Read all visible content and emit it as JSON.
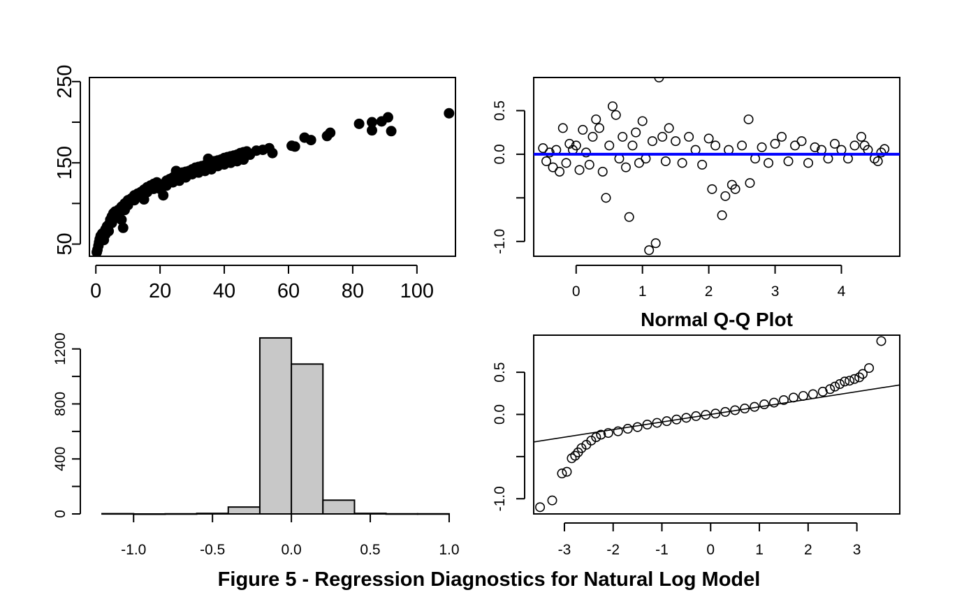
{
  "caption": "Figure 5 - Regression Diagnostics for Natural Log Model",
  "colors": {
    "points": "#000000",
    "hist_fill": "#c8c8c8",
    "hline": "#0000ff",
    "axis": "#000000"
  },
  "chart_data": [
    {
      "type": "scatter",
      "title": "",
      "xlabel": "",
      "ylabel": "",
      "xlim": [
        -2,
        112
      ],
      "ylim": [
        35,
        255
      ],
      "xticks": [
        0,
        20,
        40,
        60,
        80,
        100
      ],
      "yticks": [
        50,
        100,
        150,
        200,
        250
      ],
      "ytick_labels": [
        "50",
        "",
        "150",
        "",
        "250"
      ],
      "marker": "filled-circle",
      "points": [
        [
          0.3,
          40
        ],
        [
          0.5,
          43
        ],
        [
          0.8,
          48
        ],
        [
          1,
          52
        ],
        [
          1.2,
          56
        ],
        [
          1.5,
          60
        ],
        [
          2,
          63
        ],
        [
          2.5,
          55
        ],
        [
          3,
          68
        ],
        [
          3.5,
          72
        ],
        [
          4,
          74
        ],
        [
          4.5,
          80
        ],
        [
          5,
          84
        ],
        [
          5.5,
          88
        ],
        [
          6,
          90
        ],
        [
          7,
          92
        ],
        [
          8,
          96
        ],
        [
          8.5,
          70
        ],
        [
          9,
          100
        ],
        [
          10,
          104
        ],
        [
          11,
          106
        ],
        [
          12,
          110
        ],
        [
          13,
          112
        ],
        [
          14,
          114
        ],
        [
          15,
          117
        ],
        [
          16,
          120
        ],
        [
          17,
          122
        ],
        [
          18,
          124
        ],
        [
          19,
          126
        ],
        [
          20,
          122
        ],
        [
          21,
          110
        ],
        [
          22,
          128
        ],
        [
          23,
          130
        ],
        [
          24,
          132
        ],
        [
          25,
          134
        ],
        [
          26,
          136
        ],
        [
          27,
          138
        ],
        [
          28,
          139
        ],
        [
          29,
          140
        ],
        [
          30,
          142
        ],
        [
          31,
          144
        ],
        [
          32,
          145
        ],
        [
          33,
          146
        ],
        [
          34,
          147
        ],
        [
          35,
          149
        ],
        [
          36,
          150
        ],
        [
          37,
          152
        ],
        [
          38,
          153
        ],
        [
          39,
          154
        ],
        [
          40,
          156
        ],
        [
          41,
          157
        ],
        [
          42,
          158
        ],
        [
          43,
          159
        ],
        [
          44,
          160
        ],
        [
          45,
          162
        ],
        [
          46,
          163
        ],
        [
          47,
          164
        ],
        [
          48,
          160
        ],
        [
          50,
          165
        ],
        [
          52,
          166
        ],
        [
          54,
          168
        ],
        [
          55,
          162
        ],
        [
          61,
          171
        ],
        [
          62,
          170
        ],
        [
          65,
          181
        ],
        [
          67,
          178
        ],
        [
          72,
          183
        ],
        [
          73,
          187
        ],
        [
          82,
          198
        ],
        [
          86,
          200
        ],
        [
          86,
          190
        ],
        [
          89,
          201
        ],
        [
          91,
          206
        ],
        [
          92,
          189
        ],
        [
          110,
          211
        ],
        [
          3,
          62
        ],
        [
          5,
          76
        ],
        [
          6,
          82
        ],
        [
          7,
          86
        ],
        [
          9,
          92
        ],
        [
          10,
          98
        ],
        [
          12,
          104
        ],
        [
          14,
          108
        ],
        [
          16,
          114
        ],
        [
          18,
          118
        ],
        [
          20,
          118
        ],
        [
          22,
          122
        ],
        [
          24,
          126
        ],
        [
          26,
          128
        ],
        [
          28,
          132
        ],
        [
          30,
          136
        ],
        [
          32,
          138
        ],
        [
          34,
          140
        ],
        [
          36,
          142
        ],
        [
          38,
          146
        ],
        [
          40,
          148
        ],
        [
          42,
          150
        ],
        [
          44,
          152
        ],
        [
          46,
          154
        ],
        [
          25,
          140
        ],
        [
          35,
          155
        ],
        [
          15,
          105
        ],
        [
          8,
          80
        ],
        [
          4,
          66
        ],
        [
          2,
          58
        ]
      ]
    },
    {
      "type": "scatter",
      "title": "",
      "xlabel": "",
      "ylabel": "",
      "xlim": [
        -0.64,
        4.88
      ],
      "ylim": [
        -1.17,
        0.88
      ],
      "xticks": [
        0,
        1,
        2,
        3,
        4
      ],
      "yticks": [
        -1.0,
        -0.5,
        0.0,
        0.5
      ],
      "ytick_labels": [
        "-1.0",
        "",
        "0.0",
        "0.5"
      ],
      "hline": 0,
      "marker": "open-circle",
      "points": [
        [
          -0.5,
          0.07
        ],
        [
          -0.45,
          -0.08
        ],
        [
          -0.4,
          0.02
        ],
        [
          -0.35,
          -0.15
        ],
        [
          -0.3,
          0.05
        ],
        [
          -0.25,
          -0.2
        ],
        [
          -0.2,
          0.3
        ],
        [
          -0.15,
          -0.1
        ],
        [
          -0.1,
          0.12
        ],
        [
          -0.05,
          0.05
        ],
        [
          0,
          0.1
        ],
        [
          0.05,
          -0.18
        ],
        [
          0.1,
          0.28
        ],
        [
          0.15,
          0.02
        ],
        [
          0.2,
          -0.12
        ],
        [
          0.25,
          0.2
        ],
        [
          0.3,
          0.4
        ],
        [
          0.35,
          0.3
        ],
        [
          0.4,
          -0.2
        ],
        [
          0.45,
          -0.5
        ],
        [
          0.5,
          0.1
        ],
        [
          0.55,
          0.55
        ],
        [
          0.6,
          0.45
        ],
        [
          0.65,
          -0.05
        ],
        [
          0.7,
          0.2
        ],
        [
          0.75,
          -0.15
        ],
        [
          0.8,
          -0.72
        ],
        [
          0.85,
          0.1
        ],
        [
          0.9,
          0.25
        ],
        [
          0.95,
          -0.1
        ],
        [
          1.0,
          0.38
        ],
        [
          1.05,
          -0.05
        ],
        [
          1.1,
          -1.1
        ],
        [
          1.15,
          0.15
        ],
        [
          1.2,
          -1.02
        ],
        [
          1.25,
          0.88
        ],
        [
          1.3,
          0.2
        ],
        [
          1.35,
          -0.08
        ],
        [
          1.4,
          0.3
        ],
        [
          1.5,
          0.15
        ],
        [
          1.6,
          -0.1
        ],
        [
          1.7,
          0.2
        ],
        [
          1.8,
          0.05
        ],
        [
          1.9,
          -0.12
        ],
        [
          2.0,
          0.18
        ],
        [
          2.05,
          -0.4
        ],
        [
          2.1,
          0.1
        ],
        [
          2.2,
          -0.7
        ],
        [
          2.25,
          -0.48
        ],
        [
          2.3,
          0.05
        ],
        [
          2.35,
          -0.35
        ],
        [
          2.4,
          -0.4
        ],
        [
          2.5,
          0.1
        ],
        [
          2.6,
          0.4
        ],
        [
          2.62,
          -0.33
        ],
        [
          2.7,
          -0.05
        ],
        [
          2.8,
          0.08
        ],
        [
          2.9,
          -0.1
        ],
        [
          3.0,
          0.12
        ],
        [
          3.1,
          0.2
        ],
        [
          3.2,
          -0.08
        ],
        [
          3.3,
          0.1
        ],
        [
          3.4,
          0.15
        ],
        [
          3.5,
          -0.1
        ],
        [
          3.6,
          0.08
        ],
        [
          3.7,
          0.05
        ],
        [
          3.8,
          -0.05
        ],
        [
          3.9,
          0.12
        ],
        [
          4.0,
          0.05
        ],
        [
          4.1,
          -0.05
        ],
        [
          4.2,
          0.1
        ],
        [
          4.3,
          0.2
        ],
        [
          4.35,
          0.1
        ],
        [
          4.4,
          0.05
        ],
        [
          4.5,
          -0.05
        ],
        [
          4.55,
          -0.08
        ],
        [
          4.6,
          0.02
        ],
        [
          4.65,
          0.06
        ]
      ]
    },
    {
      "type": "bar",
      "title": "",
      "xlabel": "",
      "ylabel": "",
      "xlim": [
        -1.28,
        1.04
      ],
      "ylim": [
        0,
        1300
      ],
      "xticks": [
        -1.0,
        -0.5,
        0.0,
        0.5,
        1.0
      ],
      "xtick_labels": [
        "-1.0",
        "-0.5",
        "0.0",
        "0.5",
        "1.0"
      ],
      "yticks": [
        0,
        200,
        400,
        600,
        800,
        1000,
        1200
      ],
      "ytick_labels": [
        "0",
        "",
        "400",
        "",
        "800",
        "",
        "1200"
      ],
      "bins": [
        {
          "from": -1.2,
          "to": -1.0,
          "count": 2
        },
        {
          "from": -1.0,
          "to": -0.8,
          "count": 0
        },
        {
          "from": -0.8,
          "to": -0.6,
          "count": 1
        },
        {
          "from": -0.6,
          "to": -0.4,
          "count": 4
        },
        {
          "from": -0.4,
          "to": -0.2,
          "count": 50
        },
        {
          "from": -0.2,
          "to": 0.0,
          "count": 1280
        },
        {
          "from": 0.0,
          "to": 0.2,
          "count": 1090
        },
        {
          "from": 0.2,
          "to": 0.4,
          "count": 100
        },
        {
          "from": 0.4,
          "to": 0.6,
          "count": 4
        },
        {
          "from": 0.6,
          "to": 0.8,
          "count": 1
        },
        {
          "from": 0.8,
          "to": 1.0,
          "count": 1
        }
      ]
    },
    {
      "type": "scatter",
      "title": "Normal Q-Q Plot",
      "xlabel": "",
      "ylabel": "",
      "xlim": [
        -3.63,
        3.88
      ],
      "ylim": [
        -1.18,
        0.94
      ],
      "xticks": [
        -3,
        -2,
        -1,
        0,
        1,
        2,
        3
      ],
      "yticks": [
        -1.0,
        -0.5,
        0.0,
        0.5
      ],
      "ytick_labels": [
        "-1.0",
        "",
        "0.0",
        "0.5"
      ],
      "marker": "open-circle",
      "reference_line": {
        "intercept": 0.0,
        "slope": 0.09
      },
      "points": [
        [
          -3.5,
          -1.1
        ],
        [
          -3.25,
          -1.02
        ],
        [
          -3.05,
          -0.7
        ],
        [
          -2.95,
          -0.68
        ],
        [
          -2.85,
          -0.52
        ],
        [
          -2.78,
          -0.49
        ],
        [
          -2.72,
          -0.45
        ],
        [
          -2.65,
          -0.4
        ],
        [
          -2.55,
          -0.36
        ],
        [
          -2.45,
          -0.31
        ],
        [
          -2.35,
          -0.27
        ],
        [
          -2.25,
          -0.24
        ],
        [
          -2.1,
          -0.22
        ],
        [
          -1.9,
          -0.2
        ],
        [
          -1.7,
          -0.17
        ],
        [
          -1.5,
          -0.15
        ],
        [
          -1.3,
          -0.12
        ],
        [
          -1.1,
          -0.1
        ],
        [
          -0.9,
          -0.08
        ],
        [
          -0.7,
          -0.06
        ],
        [
          -0.5,
          -0.04
        ],
        [
          -0.3,
          -0.02
        ],
        [
          -0.1,
          -0.005
        ],
        [
          0.1,
          0.01
        ],
        [
          0.3,
          0.03
        ],
        [
          0.5,
          0.05
        ],
        [
          0.7,
          0.07
        ],
        [
          0.9,
          0.09
        ],
        [
          1.1,
          0.12
        ],
        [
          1.3,
          0.14
        ],
        [
          1.5,
          0.17
        ],
        [
          1.7,
          0.2
        ],
        [
          1.9,
          0.22
        ],
        [
          2.1,
          0.24
        ],
        [
          2.3,
          0.27
        ],
        [
          2.45,
          0.3
        ],
        [
          2.55,
          0.33
        ],
        [
          2.65,
          0.36
        ],
        [
          2.75,
          0.39
        ],
        [
          2.85,
          0.4
        ],
        [
          2.95,
          0.42
        ],
        [
          3.05,
          0.44
        ],
        [
          3.12,
          0.48
        ],
        [
          3.25,
          0.55
        ],
        [
          3.5,
          0.87
        ]
      ]
    }
  ]
}
